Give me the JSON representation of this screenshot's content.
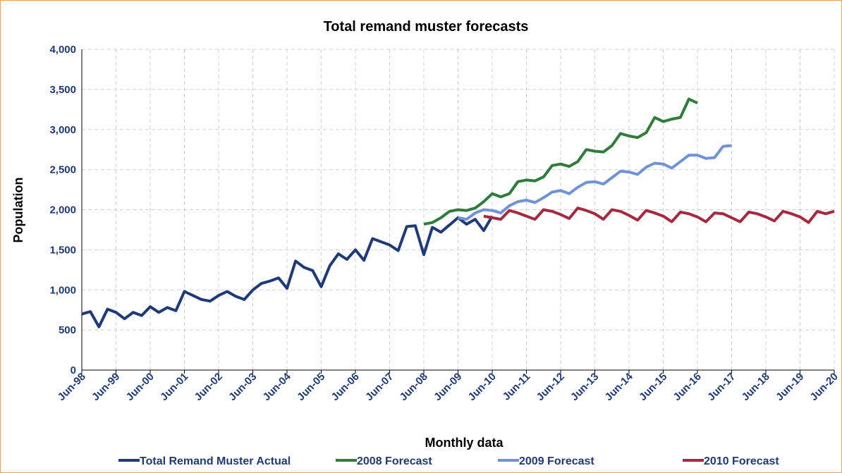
{
  "chart_data": {
    "type": "line",
    "title": "Total remand muster forecasts",
    "x_label": "Monthly data",
    "y_label": "Population",
    "categories": [
      "Jun-98",
      null,
      null,
      null,
      "Jun-99",
      null,
      null,
      null,
      "Jun-00",
      null,
      null,
      null,
      "Jun-01",
      null,
      null,
      null,
      "Jun-02",
      null,
      null,
      null,
      "Jun-03",
      null,
      null,
      null,
      "Jun-04",
      null,
      null,
      null,
      "Jun-05",
      null,
      null,
      null,
      "Jun-06",
      null,
      null,
      null,
      "Jun-07",
      null,
      null,
      null,
      "Jun-08",
      null,
      null,
      null,
      "Jun-09",
      null,
      null,
      null,
      "Jun-10",
      null,
      null,
      null,
      "Jun-11",
      null,
      null,
      null,
      "Jun-12",
      null,
      null,
      null,
      "Jun-13",
      null,
      null,
      null,
      "Jun-14",
      null,
      null,
      null,
      "Jun-15",
      null,
      null,
      null,
      "Jun-16",
      null,
      null,
      null,
      "Jun-17",
      null,
      null,
      null,
      "Jun-18",
      null,
      null,
      null,
      "Jun-19",
      null,
      null,
      null,
      "Jun-20"
    ],
    "series": [
      {
        "name": "Total Remand Muster Actual",
        "color": "#1f3a7a",
        "values": [
          700,
          730,
          540,
          760,
          720,
          640,
          720,
          680,
          790,
          720,
          780,
          740,
          980,
          930,
          880,
          860,
          930,
          980,
          920,
          880,
          1000,
          1080,
          1110,
          1150,
          1020,
          1360,
          1280,
          1240,
          1040,
          1300,
          1450,
          1380,
          1500,
          1370,
          1640,
          1600,
          1560,
          1490,
          1790,
          1800,
          1440,
          1780,
          1720,
          1810,
          1900,
          1820,
          1880,
          1740,
          1920,
          null,
          null,
          null,
          null,
          null,
          null,
          null,
          null,
          null,
          null,
          null,
          null,
          null,
          null,
          null,
          null,
          null,
          null,
          null,
          null,
          null,
          null,
          null,
          null,
          null,
          null,
          null,
          null,
          null,
          null,
          null,
          null,
          null,
          null,
          null,
          null,
          null,
          null,
          null,
          null
        ]
      },
      {
        "name": "2008 Forecast",
        "color": "#2e7d3a",
        "values": [
          null,
          null,
          null,
          null,
          null,
          null,
          null,
          null,
          null,
          null,
          null,
          null,
          null,
          null,
          null,
          null,
          null,
          null,
          null,
          null,
          null,
          null,
          null,
          null,
          null,
          null,
          null,
          null,
          null,
          null,
          null,
          null,
          null,
          null,
          null,
          null,
          null,
          null,
          null,
          null,
          1820,
          1840,
          1900,
          1980,
          2000,
          1990,
          2020,
          2100,
          2200,
          2160,
          2200,
          2350,
          2370,
          2360,
          2410,
          2550,
          2570,
          2540,
          2600,
          2750,
          2730,
          2720,
          2800,
          2950,
          2920,
          2900,
          2960,
          3150,
          3100,
          3130,
          3150,
          3380,
          3330,
          null,
          null,
          null,
          null,
          null,
          null,
          null,
          null,
          null,
          null,
          null,
          null,
          null,
          null,
          null,
          null
        ]
      },
      {
        "name": "2009 Forecast",
        "color": "#6f93d6",
        "values": [
          null,
          null,
          null,
          null,
          null,
          null,
          null,
          null,
          null,
          null,
          null,
          null,
          null,
          null,
          null,
          null,
          null,
          null,
          null,
          null,
          null,
          null,
          null,
          null,
          null,
          null,
          null,
          null,
          null,
          null,
          null,
          null,
          null,
          null,
          null,
          null,
          null,
          null,
          null,
          null,
          null,
          null,
          null,
          null,
          1900,
          1880,
          1960,
          2000,
          1990,
          1960,
          2050,
          2100,
          2120,
          2090,
          2150,
          2220,
          2240,
          2200,
          2280,
          2340,
          2350,
          2320,
          2400,
          2480,
          2470,
          2440,
          2530,
          2580,
          2570,
          2520,
          2600,
          2680,
          2680,
          2640,
          2650,
          2790,
          2800,
          null,
          null,
          null,
          null,
          null,
          null,
          null,
          null,
          null,
          null,
          null,
          null
        ]
      },
      {
        "name": "2010 Forecast",
        "color": "#a8293f",
        "values": [
          null,
          null,
          null,
          null,
          null,
          null,
          null,
          null,
          null,
          null,
          null,
          null,
          null,
          null,
          null,
          null,
          null,
          null,
          null,
          null,
          null,
          null,
          null,
          null,
          null,
          null,
          null,
          null,
          null,
          null,
          null,
          null,
          null,
          null,
          null,
          null,
          null,
          null,
          null,
          null,
          null,
          null,
          null,
          null,
          null,
          null,
          null,
          1920,
          1900,
          1880,
          1990,
          1960,
          1920,
          1880,
          2000,
          1980,
          1940,
          1890,
          2020,
          1990,
          1950,
          1880,
          2000,
          1980,
          1930,
          1870,
          1990,
          1960,
          1920,
          1850,
          1970,
          1950,
          1910,
          1850,
          1960,
          1950,
          1900,
          1850,
          1970,
          1950,
          1910,
          1860,
          1980,
          1950,
          1910,
          1840,
          1980,
          1950,
          1980
        ]
      }
    ],
    "ylim": [
      0,
      4000
    ],
    "yticks": [
      0,
      500,
      {
        "value": 1000,
        "label": "1,000"
      },
      {
        "value": 1500,
        "label": "1,500"
      },
      {
        "value": 2000,
        "label": "2,000"
      },
      {
        "value": 2500,
        "label": "2,500"
      },
      {
        "value": 3000,
        "label": "3,000"
      },
      {
        "value": 3500,
        "label": "3,500"
      },
      {
        "value": 4000,
        "label": "4,000"
      }
    ],
    "grid": true,
    "legend": "bottom"
  }
}
